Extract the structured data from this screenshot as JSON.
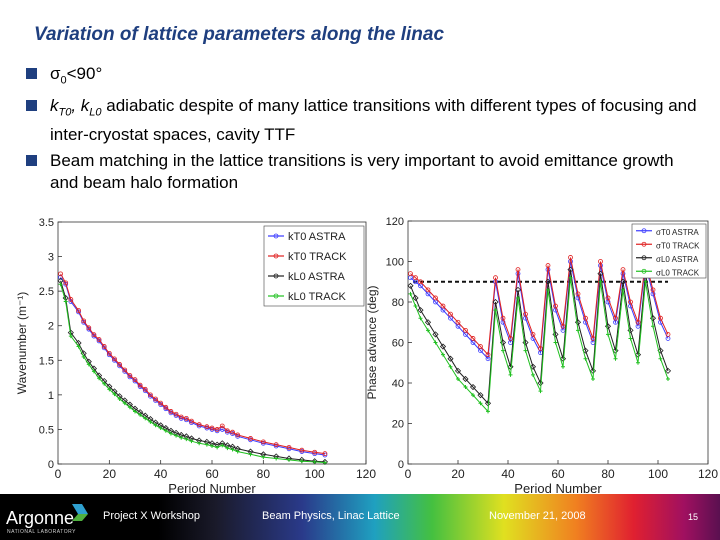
{
  "slide": {
    "title": "Variation of lattice parameters along the linac",
    "bullets": [
      {
        "pre": "σ",
        "sub": "0",
        "post": "<90°"
      },
      {
        "p1": "k",
        "s1": "T0",
        "p2": ", k",
        "s2": "L0",
        "p3": " adiabatic despite of many lattice transitions with different types of focusing and inter-cryostat spaces, cavity TTF"
      },
      {
        "text": "Beam matching in the lattice transitions is very important to avoid emittance growth and beam halo formation"
      }
    ]
  },
  "footer": {
    "logo": "Argonne",
    "logo_sub": "NATIONAL LABORATORY",
    "workshop": "Project X Workshop",
    "topic": "Beam Physics, Linac Lattice",
    "date": "November 21, 2008",
    "page": "15"
  },
  "colors": {
    "title": "#1f3f7f",
    "blue": "#3a3aff",
    "red": "#e02020",
    "black": "#202020",
    "green": "#20c020"
  },
  "chart_data": [
    {
      "type": "line",
      "xlabel": "Period Number",
      "ylabel": "Wavenumber (m⁻¹)",
      "xlim": [
        0,
        120
      ],
      "ylim": [
        0,
        3.5
      ],
      "xticks": [
        "0",
        "20",
        "40",
        "60",
        "80",
        "100",
        "120"
      ],
      "yticks": [
        "0",
        "0.5",
        "1",
        "1.5",
        "2",
        "2.5",
        "3",
        "3.5"
      ],
      "legend": "top-right",
      "series": [
        {
          "name": "kT0 ASTRA",
          "color": "#3a3aff",
          "x": [
            1,
            3,
            5,
            8,
            10,
            12,
            14,
            16,
            18,
            20,
            22,
            24,
            26,
            28,
            30,
            32,
            34,
            36,
            38,
            40,
            42,
            44,
            46,
            48,
            50,
            52,
            55,
            58,
            60,
            62,
            64,
            66,
            68,
            70,
            75,
            80,
            85,
            90,
            95,
            100,
            104
          ],
          "y": [
            2.7,
            2.6,
            2.35,
            2.2,
            2.05,
            1.95,
            1.85,
            1.78,
            1.68,
            1.58,
            1.5,
            1.42,
            1.34,
            1.26,
            1.2,
            1.12,
            1.06,
            0.98,
            0.92,
            0.86,
            0.8,
            0.74,
            0.7,
            0.66,
            0.64,
            0.6,
            0.55,
            0.52,
            0.5,
            0.48,
            0.5,
            0.46,
            0.44,
            0.4,
            0.35,
            0.3,
            0.26,
            0.22,
            0.18,
            0.15,
            0.13
          ]
        },
        {
          "name": "kT0 TRACK",
          "color": "#e02020",
          "x": [
            1,
            3,
            5,
            8,
            10,
            12,
            14,
            16,
            18,
            20,
            22,
            24,
            26,
            28,
            30,
            32,
            34,
            36,
            38,
            40,
            42,
            44,
            46,
            48,
            50,
            52,
            55,
            58,
            60,
            62,
            64,
            66,
            68,
            70,
            75,
            80,
            85,
            90,
            95,
            100,
            104
          ],
          "y": [
            2.75,
            2.62,
            2.38,
            2.22,
            2.07,
            1.97,
            1.87,
            1.8,
            1.7,
            1.6,
            1.52,
            1.44,
            1.36,
            1.28,
            1.22,
            1.14,
            1.08,
            1.0,
            0.94,
            0.88,
            0.82,
            0.76,
            0.72,
            0.68,
            0.66,
            0.62,
            0.57,
            0.54,
            0.52,
            0.5,
            0.55,
            0.48,
            0.46,
            0.42,
            0.37,
            0.32,
            0.28,
            0.24,
            0.2,
            0.17,
            0.15
          ]
        },
        {
          "name": "kL0 ASTRA",
          "color": "#202020",
          "x": [
            1,
            3,
            5,
            8,
            10,
            12,
            14,
            16,
            18,
            20,
            22,
            24,
            26,
            28,
            30,
            32,
            34,
            36,
            38,
            40,
            42,
            44,
            46,
            48,
            50,
            52,
            55,
            58,
            60,
            62,
            64,
            66,
            68,
            70,
            75,
            80,
            85,
            90,
            95,
            100,
            104
          ],
          "y": [
            2.65,
            2.4,
            1.9,
            1.75,
            1.6,
            1.48,
            1.38,
            1.28,
            1.2,
            1.12,
            1.05,
            0.98,
            0.92,
            0.86,
            0.8,
            0.75,
            0.7,
            0.65,
            0.6,
            0.56,
            0.52,
            0.48,
            0.45,
            0.42,
            0.4,
            0.37,
            0.34,
            0.32,
            0.3,
            0.28,
            0.3,
            0.27,
            0.25,
            0.22,
            0.18,
            0.14,
            0.11,
            0.08,
            0.06,
            0.04,
            0.03
          ]
        },
        {
          "name": "kL0 TRACK",
          "color": "#20c020",
          "x": [
            1,
            3,
            5,
            8,
            10,
            12,
            14,
            16,
            18,
            20,
            22,
            24,
            26,
            28,
            30,
            32,
            34,
            36,
            38,
            40,
            42,
            44,
            46,
            48,
            50,
            52,
            55,
            58,
            60,
            62,
            64,
            66,
            68,
            70,
            75,
            80,
            85,
            90,
            95,
            100,
            104
          ],
          "y": [
            2.6,
            2.35,
            1.85,
            1.7,
            1.55,
            1.44,
            1.34,
            1.24,
            1.16,
            1.08,
            1.01,
            0.94,
            0.88,
            0.82,
            0.76,
            0.71,
            0.66,
            0.61,
            0.56,
            0.52,
            0.48,
            0.44,
            0.41,
            0.38,
            0.36,
            0.33,
            0.3,
            0.28,
            0.26,
            0.24,
            0.27,
            0.23,
            0.21,
            0.18,
            0.14,
            0.1,
            0.08,
            0.06,
            0.04,
            0.03,
            0.02
          ]
        }
      ]
    },
    {
      "type": "line",
      "xlabel": "Period Number",
      "ylabel": "Phase advance (deg)",
      "xlim": [
        0,
        120
      ],
      "ylim": [
        0,
        120
      ],
      "xticks": [
        "0",
        "20",
        "40",
        "60",
        "80",
        "100",
        "120"
      ],
      "yticks": [
        "0",
        "20",
        "40",
        "60",
        "80",
        "100",
        "120"
      ],
      "legend": "top-right",
      "reference_line": 90,
      "series": [
        {
          "name": "σT0 ASTRA",
          "color": "#3a3aff",
          "x": [
            1,
            3,
            5,
            8,
            11,
            14,
            17,
            20,
            23,
            26,
            29,
            32,
            35,
            38,
            41,
            44,
            47,
            50,
            53,
            56,
            59,
            62,
            65,
            68,
            71,
            74,
            77,
            80,
            83,
            86,
            89,
            92,
            95,
            98,
            101,
            104
          ],
          "y": [
            92,
            90,
            88,
            84,
            80,
            76,
            72,
            68,
            64,
            60,
            56,
            52,
            90,
            70,
            60,
            94,
            72,
            62,
            55,
            96,
            76,
            66,
            100,
            82,
            70,
            60,
            98,
            80,
            70,
            94,
            78,
            68,
            98,
            84,
            70,
            62
          ]
        },
        {
          "name": "σT0 TRACK",
          "color": "#e02020",
          "x": [
            1,
            3,
            5,
            8,
            11,
            14,
            17,
            20,
            23,
            26,
            29,
            32,
            35,
            38,
            41,
            44,
            47,
            50,
            53,
            56,
            59,
            62,
            65,
            68,
            71,
            74,
            77,
            80,
            83,
            86,
            89,
            92,
            95,
            98,
            101,
            104
          ],
          "y": [
            94,
            92,
            90,
            86,
            82,
            78,
            74,
            70,
            66,
            62,
            58,
            54,
            92,
            72,
            62,
            96,
            74,
            64,
            57,
            98,
            78,
            68,
            102,
            84,
            72,
            62,
            100,
            82,
            72,
            96,
            80,
            70,
            100,
            86,
            72,
            64
          ]
        },
        {
          "name": "σL0 ASTRA",
          "color": "#202020",
          "x": [
            1,
            3,
            5,
            8,
            11,
            14,
            17,
            20,
            23,
            26,
            29,
            32,
            35,
            38,
            41,
            44,
            47,
            50,
            53,
            56,
            59,
            62,
            65,
            68,
            71,
            74,
            77,
            80,
            83,
            86,
            89,
            92,
            95,
            98,
            101,
            104
          ],
          "y": [
            88,
            82,
            76,
            70,
            64,
            58,
            52,
            46,
            42,
            38,
            34,
            30,
            80,
            60,
            48,
            86,
            60,
            48,
            40,
            90,
            64,
            52,
            96,
            70,
            56,
            46,
            94,
            68,
            56,
            90,
            66,
            54,
            94,
            72,
            56,
            46
          ]
        },
        {
          "name": "σL0 TRACK",
          "color": "#20c020",
          "x": [
            1,
            3,
            5,
            8,
            11,
            14,
            17,
            20,
            23,
            26,
            29,
            32,
            35,
            38,
            41,
            44,
            47,
            50,
            53,
            56,
            59,
            62,
            65,
            68,
            71,
            74,
            77,
            80,
            83,
            86,
            89,
            92,
            95,
            98,
            101,
            104
          ],
          "y": [
            84,
            78,
            72,
            66,
            60,
            54,
            48,
            42,
            38,
            34,
            30,
            26,
            76,
            56,
            44,
            82,
            56,
            44,
            36,
            86,
            60,
            48,
            92,
            66,
            52,
            42,
            90,
            64,
            52,
            86,
            62,
            50,
            90,
            68,
            52,
            42
          ]
        }
      ]
    }
  ]
}
